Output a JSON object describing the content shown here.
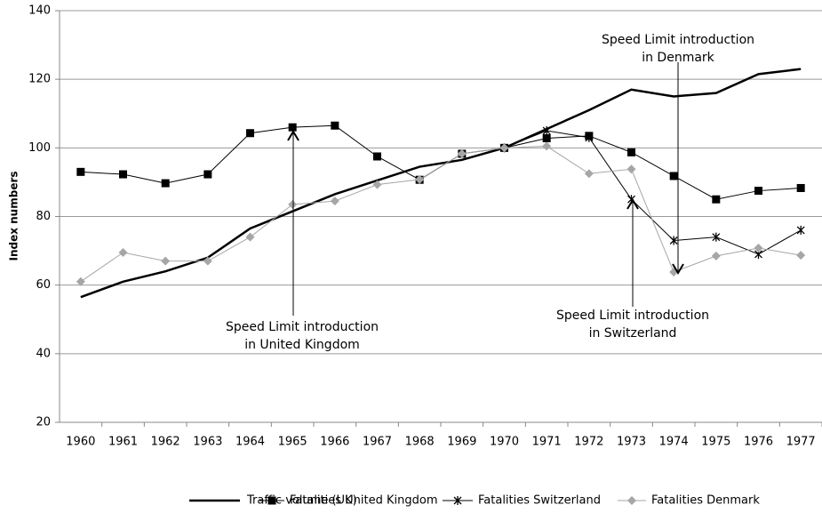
{
  "chart_data": {
    "type": "line",
    "y_label": "Index numbers",
    "categories": [
      "1960",
      "1961",
      "1962",
      "1963",
      "1964",
      "1965",
      "1966",
      "1967",
      "1968",
      "1969",
      "1970",
      "1971",
      "1972",
      "1973",
      "1974",
      "1975",
      "1976",
      "1977"
    ],
    "series": [
      {
        "name": "Traffic volume (UK)",
        "color": "#000000",
        "marker": "none",
        "values": [
          56.5,
          61,
          64,
          68,
          76.5,
          81.5,
          86.5,
          90.5,
          94.5,
          96.5,
          100,
          105.5,
          111,
          117,
          115,
          116,
          121.5,
          123
        ]
      },
      {
        "name": "Fatalities United Kingdom",
        "color": "#000000",
        "marker": "square",
        "values": [
          93,
          92.3,
          89.7,
          92.3,
          104.3,
          106,
          106.5,
          97.5,
          90.7,
          98.3,
          100,
          102.8,
          103.5,
          98.7,
          91.8,
          85,
          87.5,
          88.3
        ]
      },
      {
        "name": "Fatalities Switzerland",
        "color": "#000000",
        "marker": "asterisk",
        "values": [
          null,
          null,
          null,
          null,
          null,
          null,
          null,
          null,
          null,
          null,
          100,
          105,
          103,
          85,
          73,
          74,
          69,
          76
        ]
      },
      {
        "name": "Fatalities Denmark",
        "color": "#a6a6a6",
        "marker": "diamond",
        "values": [
          61,
          69.5,
          67,
          67,
          74,
          83.5,
          84.5,
          89.3,
          90.8,
          98.3,
          100,
          100.5,
          92.5,
          93.8,
          63.8,
          68.5,
          70.8,
          68.7
        ]
      }
    ],
    "ylim": [
      20,
      140
    ],
    "yticks": [
      20,
      40,
      60,
      80,
      100,
      120,
      140
    ],
    "grid": true,
    "annotations": [
      {
        "lines": [
          "Speed Limit introduction",
          "in United Kingdom"
        ]
      },
      {
        "lines": [
          "Speed Limit introduction",
          "in Switzerland"
        ]
      },
      {
        "lines": [
          "Speed Limit introduction",
          "in Denmark"
        ]
      }
    ]
  }
}
